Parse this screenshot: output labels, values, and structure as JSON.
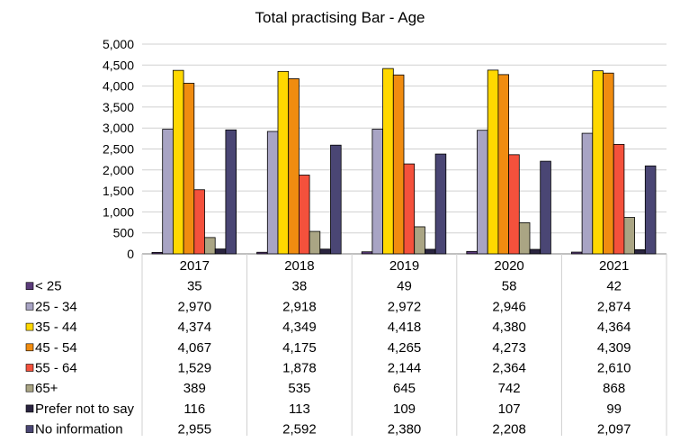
{
  "chart_data": {
    "type": "bar",
    "title": "Total practising Bar - Age",
    "categories": [
      "2017",
      "2018",
      "2019",
      "2020",
      "2021"
    ],
    "ylim": [
      0,
      5000
    ],
    "y_ticks": [
      "0",
      "500",
      "1,000",
      "1,500",
      "2,000",
      "2,500",
      "3,000",
      "3,500",
      "4,000",
      "4,500",
      "5,000"
    ],
    "grid": true,
    "legend": "data-table",
    "series": [
      {
        "name": "< 25",
        "color": "#5a3b7a",
        "values": [
          35,
          38,
          49,
          58,
          42
        ],
        "labels": [
          "35",
          "38",
          "49",
          "58",
          "42"
        ]
      },
      {
        "name": "25 - 34",
        "color": "#a8a4c4",
        "values": [
          2970,
          2918,
          2972,
          2946,
          2874
        ],
        "labels": [
          "2,970",
          "2,918",
          "2,972",
          "2,946",
          "2,874"
        ]
      },
      {
        "name": "35 - 44",
        "color": "#ffd800",
        "values": [
          4374,
          4349,
          4418,
          4380,
          4364
        ],
        "labels": [
          "4,374",
          "4,349",
          "4,418",
          "4,380",
          "4,364"
        ]
      },
      {
        "name": "45 - 54",
        "color": "#f08c10",
        "values": [
          4067,
          4175,
          4265,
          4273,
          4309
        ],
        "labels": [
          "4,067",
          "4,175",
          "4,265",
          "4,273",
          "4,309"
        ]
      },
      {
        "name": "55 - 64",
        "color": "#f4513c",
        "values": [
          1529,
          1878,
          2144,
          2364,
          2610
        ],
        "labels": [
          "1,529",
          "1,878",
          "2,144",
          "2,364",
          "2,610"
        ]
      },
      {
        "name": "65+",
        "color": "#aaa584",
        "values": [
          389,
          535,
          645,
          742,
          868
        ],
        "labels": [
          "389",
          "535",
          "645",
          "742",
          "868"
        ]
      },
      {
        "name": "Prefer not to say",
        "color": "#2a2440",
        "values": [
          116,
          113,
          109,
          107,
          99
        ],
        "labels": [
          "116",
          "113",
          "109",
          "107",
          "99"
        ]
      },
      {
        "name": "No information",
        "color": "#4a4674",
        "values": [
          2955,
          2592,
          2380,
          2208,
          2097
        ],
        "labels": [
          "2,955",
          "2,592",
          "2,380",
          "2,208",
          "2,097"
        ]
      }
    ]
  }
}
